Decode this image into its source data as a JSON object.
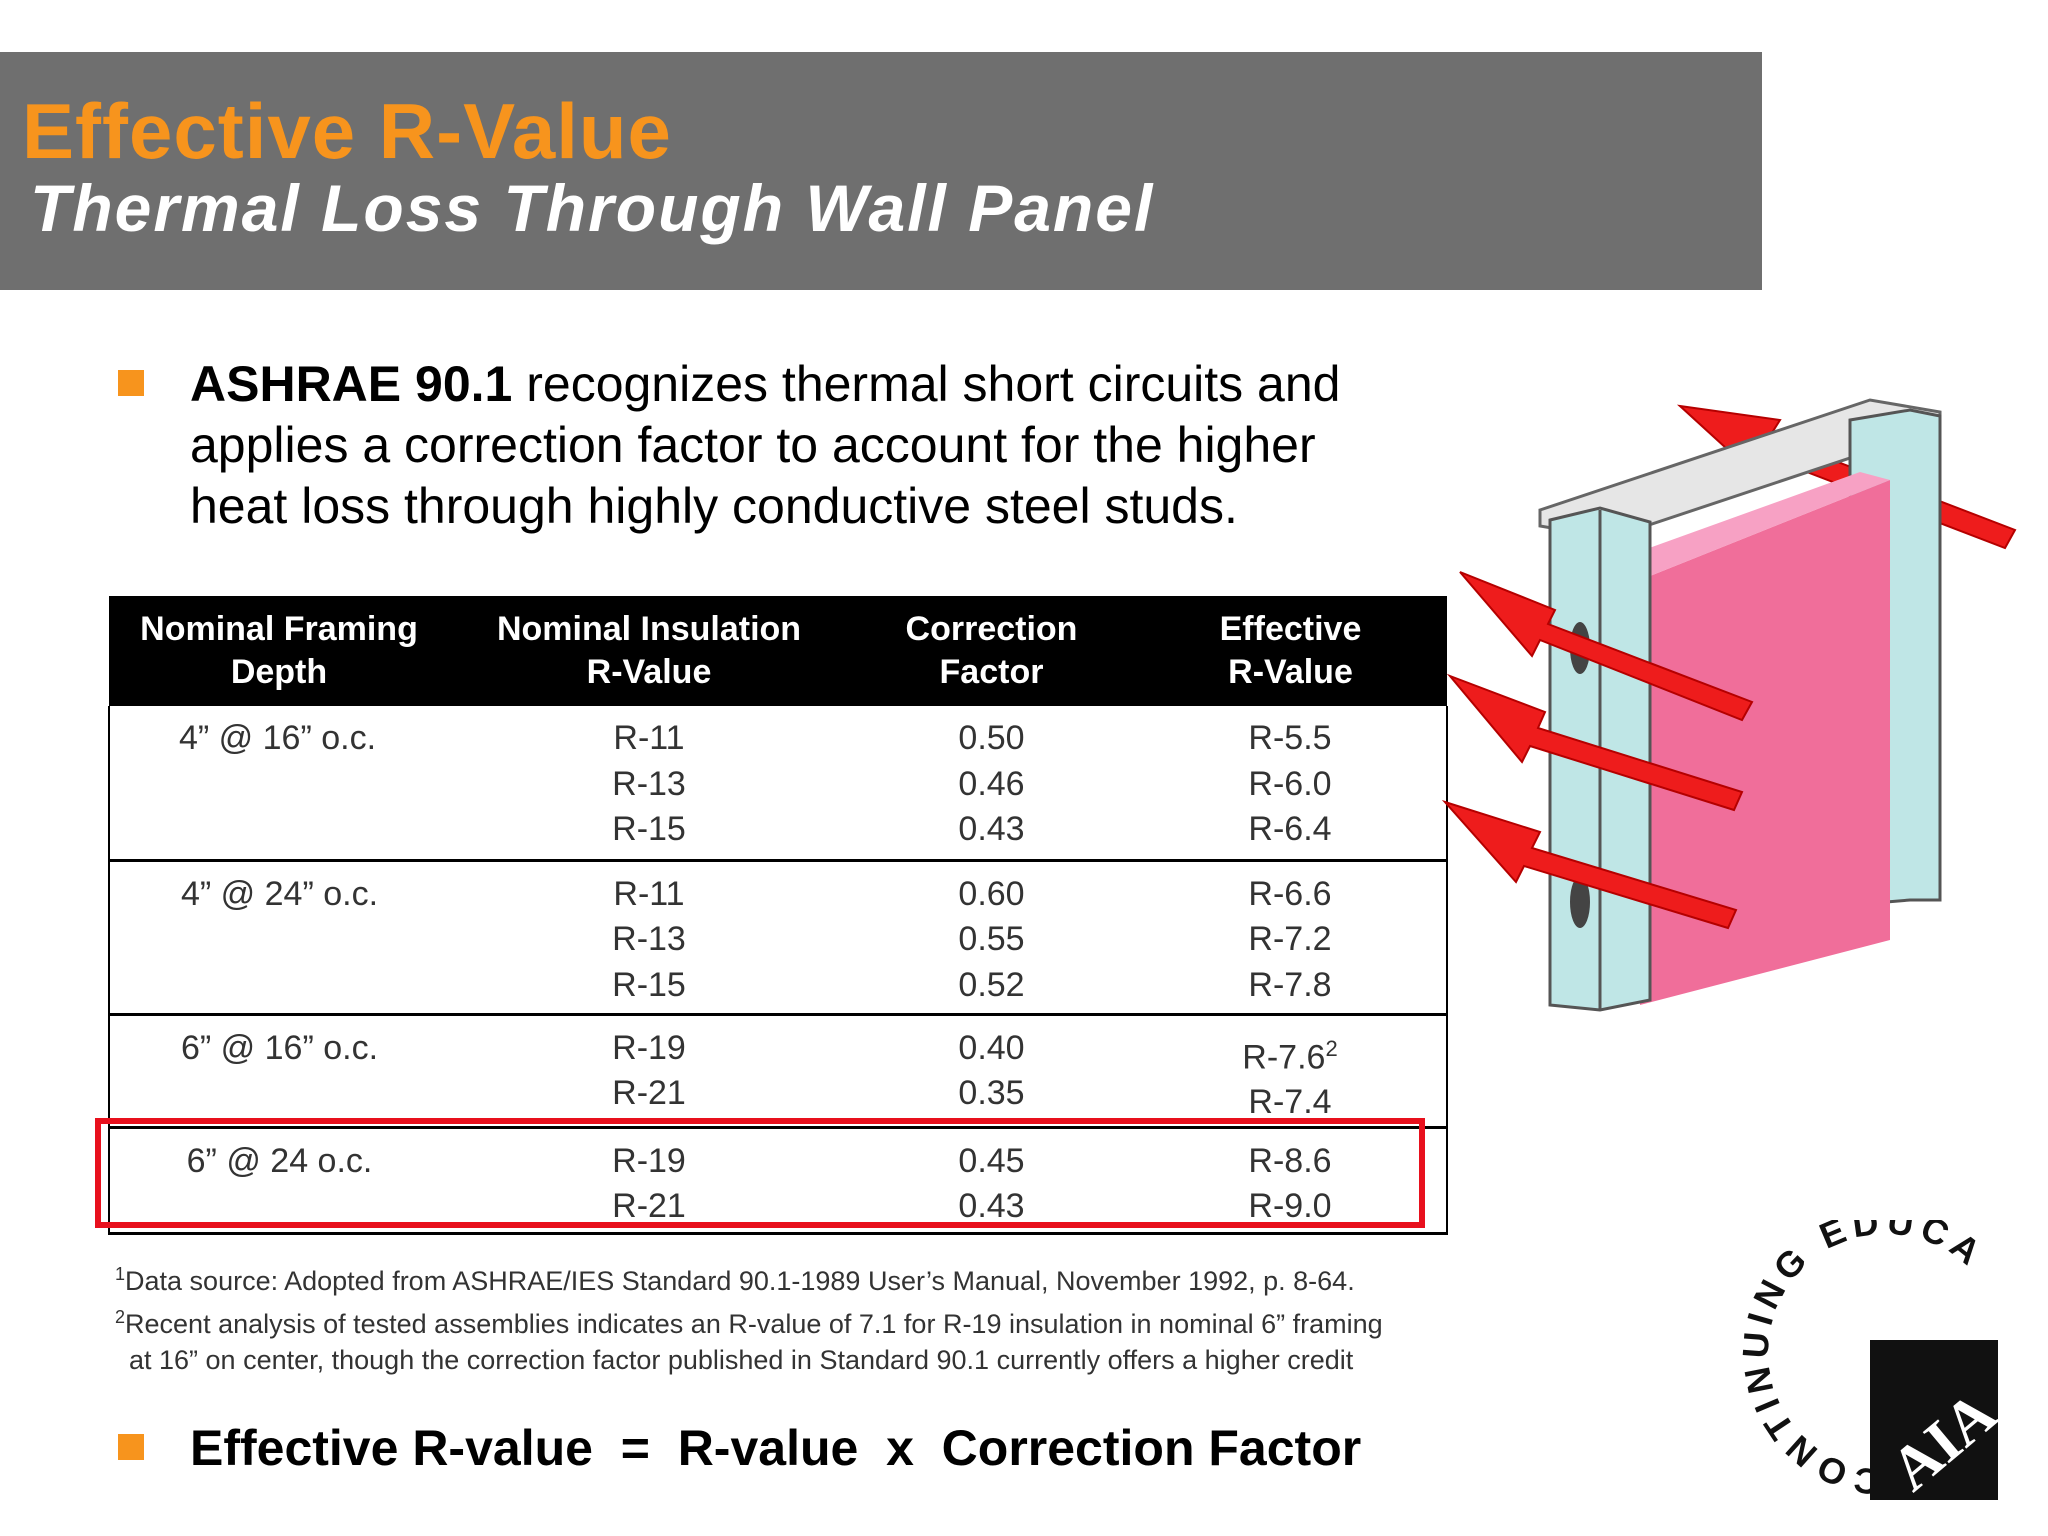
{
  "header": {
    "title": "Effective R-Value",
    "subtitle": "Thermal Loss Through Wall Panel"
  },
  "bullets": [
    {
      "bold": "ASHRAE 90.1",
      "lines": [
        " recognizes thermal short circuits and",
        "applies a correction factor to account for the higher",
        "heat loss through highly conductive steel studs."
      ]
    },
    {
      "text": "Effective R-value  =  R-value  x  Correction Factor"
    }
  ],
  "table": {
    "headers": [
      [
        "Nominal Framing",
        "Depth"
      ],
      [
        "Nominal Insulation",
        "R-Value"
      ],
      [
        "Correction",
        "Factor"
      ],
      [
        "Effective",
        "R-Value"
      ]
    ],
    "groups": [
      {
        "framing": "4” @ 16” o.c.",
        "rows": [
          {
            "r": "R-11",
            "cf": "0.50",
            "eff": "R-5.5"
          },
          {
            "r": "R-13",
            "cf": "0.46",
            "eff": "R-6.0"
          },
          {
            "r": "R-15",
            "cf": "0.43",
            "eff": "R-6.4"
          }
        ]
      },
      {
        "framing": "4” @ 24” o.c.",
        "rows": [
          {
            "r": "R-11",
            "cf": "0.60",
            "eff": "R-6.6"
          },
          {
            "r": "R-13",
            "cf": "0.55",
            "eff": "R-7.2"
          },
          {
            "r": "R-15",
            "cf": "0.52",
            "eff": "R-7.8"
          }
        ]
      },
      {
        "framing": "6” @ 16” o.c.",
        "rows": [
          {
            "r": "R-19",
            "cf": "0.40",
            "eff": "R-7.6",
            "sup": "2"
          },
          {
            "r": "R-21",
            "cf": "0.35",
            "eff": "R-7.4"
          }
        ]
      },
      {
        "framing": "6” @ 24 o.c.",
        "rows": [
          {
            "r": "R-19",
            "cf": "0.45",
            "eff": "R-8.6"
          },
          {
            "r": "R-21",
            "cf": "0.43",
            "eff": "R-9.0"
          }
        ]
      }
    ]
  },
  "footnotes": [
    {
      "mark": "1",
      "text": "Data source:  Adopted from ASHRAE/IES Standard 90.1-1989 User’s Manual, November 1992, p. 8-64."
    },
    {
      "mark": "2",
      "text": "Recent analysis of tested assemblies indicates an R-value of 7.1 for R-19 insulation in nominal 6” framing"
    },
    {
      "mark": "",
      "text": "at 16” on center, though the correction factor published in Standard 90.1 currently offers a higher credit"
    }
  ],
  "logo": {
    "ring_text": "CONTINUING EDUCATION",
    "mark": "AIA"
  },
  "colors": {
    "header_bg": "#6f6f6f",
    "title_orange": "#f7941d",
    "highlight_red": "#e8101d",
    "insulation_pink": "#f06e9a",
    "stud_teal": "#bfe6e6",
    "arrow_red": "#ee1c1c"
  },
  "icons": [
    "bullet-square-icon",
    "heat-arrow-icon",
    "steel-stud-icon",
    "aia-logo-icon"
  ]
}
